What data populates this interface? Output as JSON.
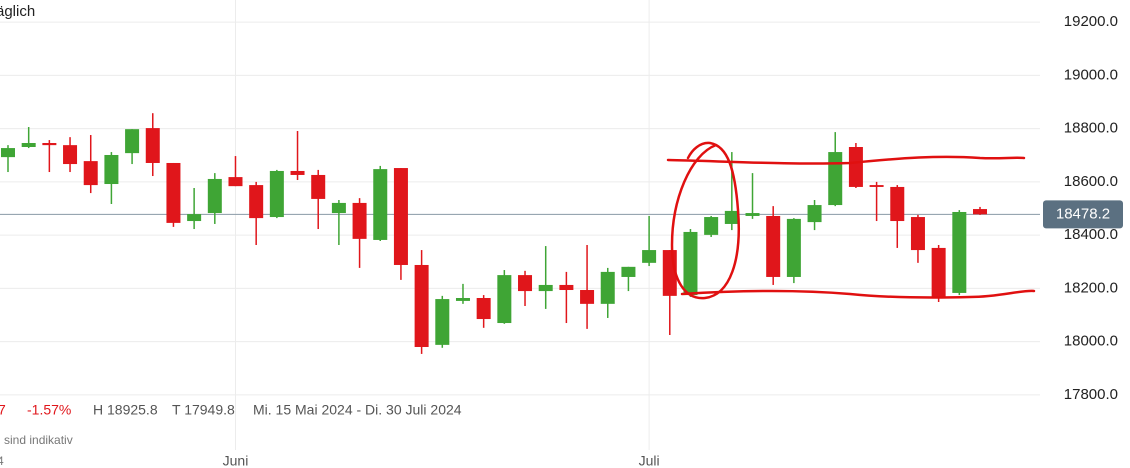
{
  "chart_data": {
    "type": "candlestick",
    "title": "äglich",
    "info": {
      "change": "7",
      "change_percent": "-1.57%",
      "high": "H 18925.8",
      "low": "T 17949.8",
      "range": "Mi. 15 Mai 2024 - Di. 30 Juli 2024",
      "note": "sind indikativ",
      "corner": "4"
    },
    "categories": [
      null,
      null,
      null,
      null,
      null,
      null,
      null,
      null,
      null,
      null,
      null,
      "Juni",
      null,
      null,
      null,
      null,
      null,
      null,
      null,
      null,
      null,
      null,
      null,
      null,
      null,
      null,
      null,
      null,
      null,
      null,
      null,
      "Juli",
      null,
      null,
      null,
      null,
      null,
      null,
      null,
      null,
      null,
      null,
      null,
      null,
      null,
      null,
      null,
      null
    ],
    "open": [
      18693,
      18731,
      18746,
      18738,
      18678,
      18592,
      18708,
      18802,
      18671,
      18453,
      18483,
      18618,
      18588,
      18468,
      18641,
      18626,
      18483,
      18521,
      18382,
      18652,
      18288,
      17988,
      18153,
      18164,
      18070,
      18250,
      18190,
      18213,
      18194,
      18142,
      18243,
      18296,
      18344,
      18175,
      18401,
      18442,
      18472,
      18472,
      18243,
      18449,
      18513,
      18731,
      18588,
      18581,
      18468,
      18352,
      18183,
      18498
    ],
    "high": [
      18738,
      18806,
      18757,
      18768,
      18776,
      18712,
      18798,
      18858,
      18671,
      18577,
      18633,
      18697,
      18600,
      18645,
      18791,
      18645,
      18532,
      18539,
      18660,
      18652,
      18344,
      18172,
      18217,
      18175,
      18269,
      18266,
      18359,
      18262,
      18363,
      18277,
      18281,
      18472,
      18344,
      18423,
      18472,
      18712,
      18633,
      18509,
      18464,
      18532,
      18787,
      18746,
      18600,
      18588,
      18476,
      18363,
      18494,
      18506
    ],
    "low": [
      18637,
      18727,
      18637,
      18637,
      18558,
      18517,
      18667,
      18622,
      18431,
      18423,
      18442,
      18584,
      18363,
      18464,
      18607,
      18423,
      18363,
      18277,
      18378,
      18232,
      17954,
      17977,
      18142,
      18052,
      18067,
      18134,
      18123,
      18070,
      18048,
      18089,
      18190,
      18284,
      18025,
      18168,
      18393,
      18419,
      18461,
      18213,
      18220,
      18419,
      18509,
      18577,
      18453,
      18352,
      18296,
      18149,
      18175,
      18476
    ],
    "close": [
      18727,
      18746,
      18738,
      18667,
      18588,
      18701,
      18798,
      18671,
      18446,
      18479,
      18611,
      18584,
      18464,
      18641,
      18626,
      18536,
      18521,
      18386,
      18648,
      18288,
      17980,
      18160,
      18164,
      18085,
      18250,
      18190,
      18213,
      18194,
      18142,
      18262,
      18281,
      18344,
      18172,
      18412,
      18468,
      18491,
      18483,
      18243,
      18461,
      18513,
      18712,
      18581,
      18581,
      18453,
      18344,
      18164,
      18487,
      18478.2
    ],
    "up_color": "#3fa535",
    "down_color": "#e0161b",
    "last_price": 18478.2,
    "ylim": [
      17612,
      19283
    ],
    "yticks": [
      {
        "value": 17800,
        "label": "17800.0"
      },
      {
        "value": 18000,
        "label": "18000.0"
      },
      {
        "value": 18200,
        "label": "18200.0"
      },
      {
        "value": 18400,
        "label": "18400.0"
      },
      {
        "value": 18600,
        "label": "18600.0"
      },
      {
        "value": 18800,
        "label": "18800.0"
      },
      {
        "value": 19000,
        "label": "19000.0"
      },
      {
        "value": 19200,
        "label": "19200.0"
      }
    ],
    "grid": true
  }
}
